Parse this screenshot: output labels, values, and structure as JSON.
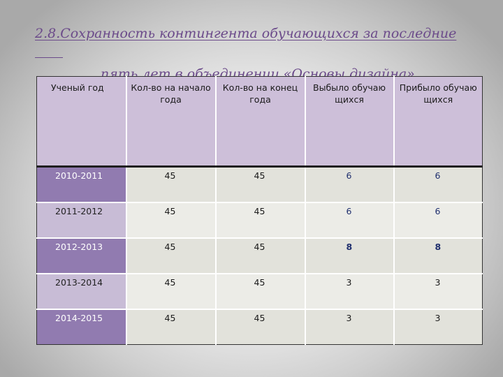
{
  "slide": {
    "title_line1": "2.8.Сохранность контингента обучающихся за последние",
    "title_line2": "пять лет в объединении «Основы дизайна»"
  },
  "table": {
    "headers": [
      "Ученый год",
      "Кол-во на начало года",
      "Кол-во на конец года",
      "Выбыло обучаю щихся",
      "Прибыло обучаю щихся"
    ],
    "rows": [
      {
        "year": "2010-2011",
        "start": "45",
        "end": "45",
        "left": "6",
        "arrived": "6"
      },
      {
        "year": "2011-2012",
        "start": "45",
        "end": "45",
        "left": "6",
        "arrived": "6"
      },
      {
        "year": "2012-2013",
        "start": "45",
        "end": "45",
        "left": "8",
        "arrived": "8"
      },
      {
        "year": "2013-2014",
        "start": "45",
        "end": "45",
        "left": "3",
        "arrived": "3"
      },
      {
        "year": "2014-2015",
        "start": "45",
        "end": "45",
        "left": "3",
        "arrived": "3"
      }
    ]
  }
}
